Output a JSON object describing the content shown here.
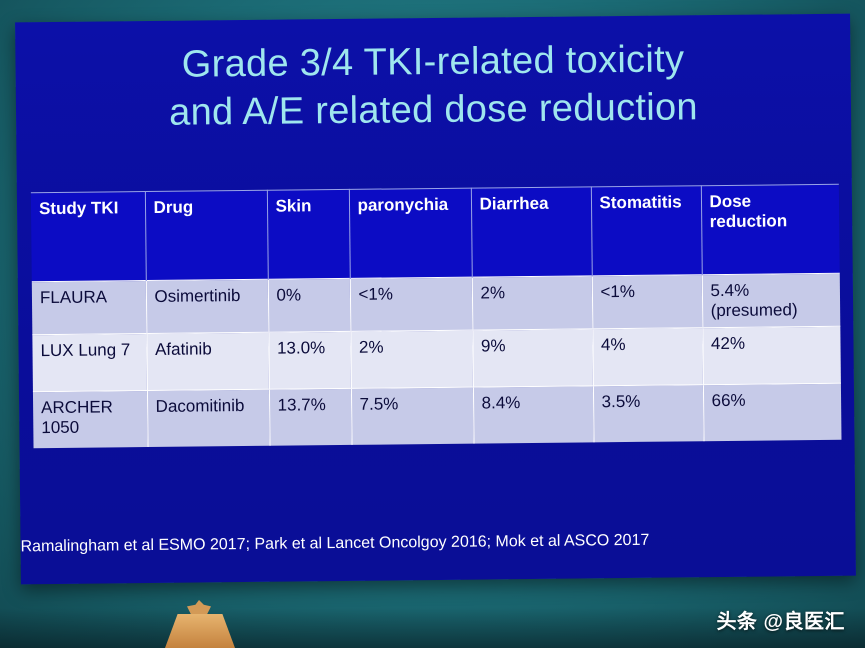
{
  "slide": {
    "title_line1": "Grade 3/4 TKI-related toxicity",
    "title_line2": "and A/E related dose reduction",
    "table": {
      "headers": [
        "Study TKI",
        "Drug",
        "Skin",
        "paronychia",
        "Diarrhea",
        "Stomatitis",
        "Dose reduction"
      ],
      "rows": [
        {
          "study": "FLAURA",
          "drug": "Osimertinib",
          "skin": "0%",
          "paronychia": "<1%",
          "diarrhea": "2%",
          "stomatitis": "<1%",
          "dose_reduction": "5.4% (presumed)"
        },
        {
          "study": "LUX Lung 7",
          "drug": "Afatinib",
          "skin": "13.0%",
          "paronychia": "2%",
          "diarrhea": "9%",
          "stomatitis": "4%",
          "dose_reduction": "42%"
        },
        {
          "study": "ARCHER 1050",
          "drug": "Dacomitinib",
          "skin": "13.7%",
          "paronychia": "7.5%",
          "diarrhea": "8.4%",
          "stomatitis": "3.5%",
          "dose_reduction": "66%"
        }
      ]
    },
    "references": "Ramalingham et al ESMO 2017; Park et al Lancet Oncolgoy 2016; Mok et al ASCO 2017"
  },
  "watermark": "头条 @良医汇",
  "colors": {
    "slide_background": "#0a0d9a",
    "title_text": "#9fe6ee",
    "header_row": "#0c0cc4",
    "row_shaded": "#c6cae8",
    "row_light": "#e4e6f4"
  }
}
